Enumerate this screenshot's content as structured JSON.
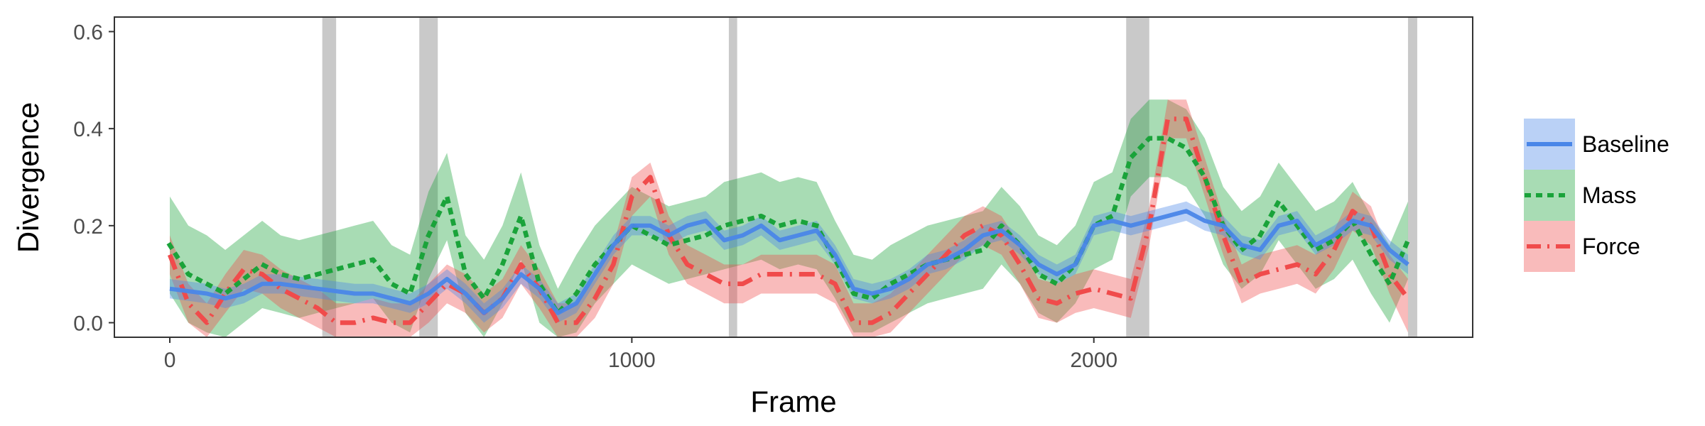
{
  "chart_data": {
    "type": "line",
    "xlabel": "Frame",
    "ylabel": "Divergence",
    "xlim": [
      -120,
      2820
    ],
    "ylim": [
      -0.03,
      0.63
    ],
    "x_ticks": [
      0,
      1000,
      2000
    ],
    "x_tick_labels": [
      "0",
      "1000",
      "2000"
    ],
    "y_ticks": [
      0.0,
      0.2,
      0.4,
      0.6
    ],
    "y_tick_labels": [
      "0.0",
      "0.2",
      "0.4",
      "0.6"
    ],
    "grid": false,
    "legend_position": "right",
    "highlight_bands": [
      [
        330,
        360
      ],
      [
        540,
        580
      ],
      [
        1210,
        1228
      ],
      [
        2070,
        2120
      ],
      [
        2680,
        2700
      ]
    ],
    "x": [
      0,
      40,
      80,
      120,
      160,
      200,
      240,
      280,
      320,
      360,
      400,
      440,
      480,
      520,
      560,
      600,
      640,
      680,
      720,
      760,
      800,
      840,
      880,
      920,
      960,
      1000,
      1040,
      1080,
      1120,
      1160,
      1200,
      1240,
      1280,
      1320,
      1360,
      1400,
      1440,
      1480,
      1520,
      1560,
      1600,
      1640,
      1680,
      1720,
      1760,
      1800,
      1840,
      1880,
      1920,
      1960,
      2000,
      2040,
      2080,
      2120,
      2160,
      2200,
      2240,
      2280,
      2320,
      2360,
      2400,
      2440,
      2480,
      2520,
      2560,
      2600,
      2640,
      2680
    ],
    "series": [
      {
        "name": "Baseline",
        "color": "#4a86e8",
        "line_style": "solid",
        "values": [
          0.07,
          0.065,
          0.06,
          0.05,
          0.06,
          0.08,
          0.08,
          0.075,
          0.07,
          0.065,
          0.06,
          0.06,
          0.05,
          0.04,
          0.06,
          0.09,
          0.06,
          0.02,
          0.05,
          0.1,
          0.07,
          0.02,
          0.04,
          0.1,
          0.16,
          0.2,
          0.2,
          0.18,
          0.2,
          0.21,
          0.17,
          0.18,
          0.2,
          0.17,
          0.18,
          0.19,
          0.14,
          0.07,
          0.06,
          0.07,
          0.09,
          0.12,
          0.13,
          0.15,
          0.18,
          0.19,
          0.16,
          0.12,
          0.1,
          0.12,
          0.2,
          0.21,
          0.2,
          0.21,
          0.22,
          0.23,
          0.21,
          0.2,
          0.16,
          0.15,
          0.2,
          0.21,
          0.16,
          0.18,
          0.21,
          0.2,
          0.15,
          0.12
        ],
        "lower": [
          0.05,
          0.045,
          0.04,
          0.03,
          0.04,
          0.06,
          0.06,
          0.055,
          0.05,
          0.045,
          0.04,
          0.04,
          0.03,
          0.02,
          0.04,
          0.07,
          0.04,
          0.0,
          0.03,
          0.08,
          0.05,
          0.0,
          0.02,
          0.08,
          0.14,
          0.18,
          0.18,
          0.16,
          0.18,
          0.19,
          0.15,
          0.16,
          0.18,
          0.15,
          0.16,
          0.17,
          0.12,
          0.05,
          0.04,
          0.05,
          0.07,
          0.1,
          0.11,
          0.13,
          0.16,
          0.17,
          0.14,
          0.1,
          0.08,
          0.1,
          0.18,
          0.19,
          0.18,
          0.19,
          0.2,
          0.21,
          0.19,
          0.18,
          0.14,
          0.13,
          0.18,
          0.19,
          0.14,
          0.16,
          0.19,
          0.18,
          0.13,
          0.1
        ],
        "upper": [
          0.09,
          0.085,
          0.08,
          0.07,
          0.08,
          0.1,
          0.1,
          0.095,
          0.09,
          0.085,
          0.08,
          0.08,
          0.07,
          0.06,
          0.08,
          0.11,
          0.08,
          0.04,
          0.07,
          0.12,
          0.09,
          0.04,
          0.06,
          0.12,
          0.18,
          0.22,
          0.22,
          0.2,
          0.22,
          0.23,
          0.19,
          0.2,
          0.22,
          0.19,
          0.2,
          0.21,
          0.16,
          0.09,
          0.08,
          0.09,
          0.11,
          0.14,
          0.15,
          0.17,
          0.2,
          0.21,
          0.18,
          0.14,
          0.12,
          0.14,
          0.22,
          0.23,
          0.22,
          0.23,
          0.24,
          0.25,
          0.23,
          0.22,
          0.18,
          0.17,
          0.22,
          0.23,
          0.18,
          0.2,
          0.23,
          0.22,
          0.17,
          0.14
        ]
      },
      {
        "name": "Mass",
        "color": "#1aa33a",
        "line_style": "dotted",
        "values": [
          0.16,
          0.1,
          0.08,
          0.06,
          0.09,
          0.12,
          0.1,
          0.09,
          0.1,
          0.11,
          0.12,
          0.13,
          0.08,
          0.06,
          0.18,
          0.26,
          0.1,
          0.05,
          0.12,
          0.22,
          0.08,
          0.02,
          0.06,
          0.12,
          0.16,
          0.2,
          0.18,
          0.16,
          0.17,
          0.18,
          0.2,
          0.21,
          0.22,
          0.2,
          0.21,
          0.2,
          0.13,
          0.06,
          0.05,
          0.08,
          0.1,
          0.12,
          0.13,
          0.14,
          0.15,
          0.2,
          0.16,
          0.1,
          0.08,
          0.12,
          0.2,
          0.22,
          0.34,
          0.38,
          0.38,
          0.36,
          0.3,
          0.2,
          0.15,
          0.18,
          0.25,
          0.2,
          0.15,
          0.17,
          0.21,
          0.14,
          0.08,
          0.17
        ],
        "lower": [
          0.06,
          0.0,
          -0.02,
          -0.03,
          0.0,
          0.03,
          0.02,
          0.01,
          0.02,
          0.03,
          0.04,
          0.05,
          0.0,
          -0.02,
          0.09,
          0.17,
          0.02,
          -0.03,
          0.04,
          0.13,
          0.0,
          -0.03,
          -0.02,
          0.04,
          0.08,
          0.12,
          0.1,
          0.08,
          0.09,
          0.1,
          0.11,
          0.12,
          0.13,
          0.11,
          0.12,
          0.11,
          0.05,
          -0.02,
          -0.02,
          0.0,
          0.02,
          0.04,
          0.05,
          0.06,
          0.07,
          0.12,
          0.08,
          0.02,
          0.0,
          0.04,
          0.11,
          0.13,
          0.26,
          0.3,
          0.3,
          0.28,
          0.22,
          0.12,
          0.07,
          0.1,
          0.17,
          0.12,
          0.07,
          0.09,
          0.13,
          0.06,
          0.0,
          0.09
        ],
        "upper": [
          0.26,
          0.2,
          0.18,
          0.15,
          0.18,
          0.21,
          0.18,
          0.17,
          0.18,
          0.19,
          0.2,
          0.21,
          0.16,
          0.14,
          0.27,
          0.35,
          0.18,
          0.13,
          0.2,
          0.31,
          0.16,
          0.07,
          0.14,
          0.2,
          0.24,
          0.28,
          0.26,
          0.24,
          0.25,
          0.26,
          0.29,
          0.3,
          0.31,
          0.29,
          0.3,
          0.29,
          0.21,
          0.14,
          0.13,
          0.16,
          0.18,
          0.2,
          0.21,
          0.22,
          0.23,
          0.28,
          0.24,
          0.18,
          0.16,
          0.2,
          0.29,
          0.31,
          0.42,
          0.46,
          0.46,
          0.44,
          0.38,
          0.28,
          0.23,
          0.26,
          0.33,
          0.28,
          0.23,
          0.25,
          0.29,
          0.22,
          0.16,
          0.25
        ]
      },
      {
        "name": "Force",
        "color": "#f04b4b",
        "line_style": "dashdot",
        "values": [
          0.14,
          0.04,
          0.0,
          0.06,
          0.11,
          0.1,
          0.07,
          0.05,
          0.03,
          0.0,
          0.0,
          0.01,
          0.0,
          0.0,
          0.04,
          0.08,
          0.06,
          0.02,
          0.05,
          0.12,
          0.07,
          0.0,
          0.0,
          0.05,
          0.12,
          0.26,
          0.3,
          0.18,
          0.12,
          0.1,
          0.08,
          0.08,
          0.1,
          0.1,
          0.1,
          0.1,
          0.08,
          0.0,
          0.0,
          0.02,
          0.06,
          0.1,
          0.14,
          0.18,
          0.2,
          0.18,
          0.12,
          0.05,
          0.04,
          0.06,
          0.07,
          0.06,
          0.05,
          0.2,
          0.42,
          0.42,
          0.3,
          0.18,
          0.08,
          0.1,
          0.11,
          0.12,
          0.1,
          0.15,
          0.23,
          0.2,
          0.1,
          0.05
        ],
        "lower": [
          0.1,
          0.0,
          -0.03,
          0.02,
          0.07,
          0.06,
          0.03,
          0.01,
          -0.01,
          -0.03,
          -0.03,
          -0.03,
          -0.03,
          -0.03,
          0.0,
          0.04,
          0.02,
          -0.02,
          0.01,
          0.08,
          0.03,
          -0.03,
          -0.03,
          0.01,
          0.08,
          0.22,
          0.26,
          0.14,
          0.08,
          0.06,
          0.04,
          0.04,
          0.06,
          0.06,
          0.06,
          0.06,
          0.04,
          -0.03,
          -0.03,
          -0.02,
          0.02,
          0.06,
          0.1,
          0.14,
          0.16,
          0.14,
          0.08,
          0.01,
          0.0,
          0.02,
          0.03,
          0.02,
          0.01,
          0.16,
          0.38,
          0.38,
          0.26,
          0.14,
          0.04,
          0.06,
          0.07,
          0.08,
          0.06,
          0.11,
          0.19,
          0.16,
          0.06,
          -0.02
        ],
        "upper": [
          0.18,
          0.08,
          0.04,
          0.1,
          0.15,
          0.14,
          0.11,
          0.09,
          0.07,
          0.04,
          0.04,
          0.05,
          0.04,
          0.04,
          0.08,
          0.12,
          0.1,
          0.06,
          0.09,
          0.16,
          0.11,
          0.04,
          0.04,
          0.09,
          0.16,
          0.3,
          0.33,
          0.22,
          0.16,
          0.14,
          0.12,
          0.12,
          0.14,
          0.14,
          0.14,
          0.14,
          0.12,
          0.04,
          0.04,
          0.06,
          0.1,
          0.14,
          0.18,
          0.22,
          0.24,
          0.22,
          0.16,
          0.09,
          0.08,
          0.1,
          0.11,
          0.1,
          0.09,
          0.24,
          0.46,
          0.46,
          0.34,
          0.22,
          0.12,
          0.14,
          0.15,
          0.16,
          0.14,
          0.19,
          0.27,
          0.24,
          0.14,
          0.09
        ]
      }
    ]
  }
}
